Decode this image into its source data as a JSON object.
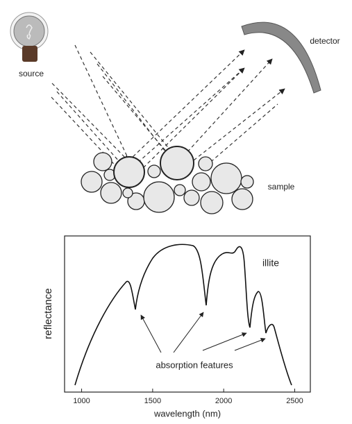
{
  "diagram": {
    "source": "source",
    "detector": "detector",
    "sample": "sample"
  },
  "chart_data": {
    "mineral": "illite",
    "annotation": "absorption features",
    "xlabel": "wavelength (nm)",
    "ylabel": "reflectance",
    "xlim": [
      880,
      2610
    ],
    "xticks": [
      1000,
      1500,
      2000,
      2500
    ]
  }
}
